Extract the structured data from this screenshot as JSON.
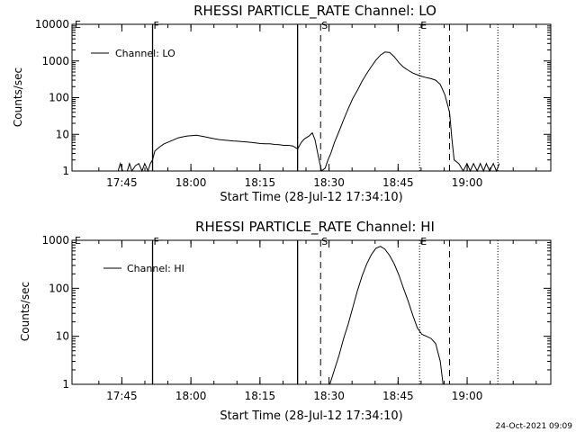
{
  "footer_timestamp": "24-Oct-2021 09:09",
  "chart_data": [
    {
      "type": "line",
      "title": "RHESSI PARTICLE_RATE Channel: LO",
      "xlabel": "Start Time (28-Jul-12 17:34:10)",
      "ylabel": "Counts/sec",
      "x_unit": "minutes after 17:34:10",
      "xlim": [
        0,
        104
      ],
      "ylim": [
        1,
        10000
      ],
      "yscale": "log",
      "xticks": [
        {
          "x": 10.83,
          "label": "17:45"
        },
        {
          "x": 25.83,
          "label": "18:00"
        },
        {
          "x": 40.83,
          "label": "18:15"
        },
        {
          "x": 55.83,
          "label": "18:30"
        },
        {
          "x": 70.83,
          "label": "18:45"
        },
        {
          "x": 85.83,
          "label": "19:00"
        }
      ],
      "yticks": [
        {
          "v": 1,
          "label": "1"
        },
        {
          "v": 10,
          "label": "10"
        },
        {
          "v": 100,
          "label": "100"
        },
        {
          "v": 1000,
          "label": "1000"
        },
        {
          "v": 10000,
          "label": "10000"
        }
      ],
      "legend": {
        "entry": "Channel: LO",
        "position": "top-left"
      },
      "markers": [
        {
          "x": 17.5,
          "style": "solid",
          "label": "F"
        },
        {
          "x": 49.0,
          "style": "solid",
          "label": ""
        },
        {
          "x": 54.0,
          "style": "dashed",
          "label": "S"
        },
        {
          "x": 75.5,
          "style": "dotted",
          "label": "E"
        },
        {
          "x": 82.0,
          "style": "dashed",
          "label": ""
        },
        {
          "x": 92.5,
          "style": "dotted",
          "label": ""
        }
      ],
      "corner_labels": [
        "E"
      ],
      "series": [
        {
          "name": "Channel: LO",
          "points": [
            [
              10.0,
              1.0
            ],
            [
              10.5,
              1.6
            ],
            [
              11.0,
              1.0
            ],
            [
              12.0,
              1.0
            ],
            [
              12.5,
              1.6
            ],
            [
              13.0,
              1.0
            ],
            [
              13.8,
              1.4
            ],
            [
              14.5,
              1.6
            ],
            [
              15.2,
              1.0
            ],
            [
              15.8,
              1.6
            ],
            [
              16.5,
              1.0
            ],
            [
              17.0,
              1.6
            ],
            [
              17.5,
              2.0
            ],
            [
              18.0,
              3.5
            ],
            [
              19.0,
              4.5
            ],
            [
              20.0,
              5.5
            ],
            [
              21.0,
              6.2
            ],
            [
              22.0,
              7.0
            ],
            [
              23.0,
              8.0
            ],
            [
              24.0,
              8.5
            ],
            [
              25.0,
              9.0
            ],
            [
              26.0,
              9.2
            ],
            [
              27.0,
              9.5
            ],
            [
              28.0,
              9.0
            ],
            [
              29.0,
              8.5
            ],
            [
              30.0,
              8.0
            ],
            [
              31.0,
              7.5
            ],
            [
              32.0,
              7.2
            ],
            [
              33.0,
              7.0
            ],
            [
              34.0,
              6.8
            ],
            [
              35.0,
              6.6
            ],
            [
              36.0,
              6.5
            ],
            [
              37.0,
              6.3
            ],
            [
              38.0,
              6.2
            ],
            [
              39.0,
              6.0
            ],
            [
              40.0,
              5.8
            ],
            [
              41.0,
              5.6
            ],
            [
              42.0,
              5.5
            ],
            [
              43.0,
              5.5
            ],
            [
              44.0,
              5.3
            ],
            [
              45.0,
              5.2
            ],
            [
              46.0,
              5.0
            ],
            [
              47.0,
              5.0
            ],
            [
              48.0,
              4.8
            ],
            [
              49.0,
              4.0
            ],
            [
              49.8,
              6.0
            ],
            [
              50.5,
              7.5
            ],
            [
              51.5,
              9.0
            ],
            [
              52.2,
              11.0
            ],
            [
              52.8,
              7.0
            ],
            [
              53.5,
              2.5
            ],
            [
              54.2,
              1.0
            ],
            [
              55.0,
              1.2
            ],
            [
              55.6,
              2.0
            ],
            [
              56.2,
              3.0
            ],
            [
              57.0,
              6.0
            ],
            [
              58.0,
              12.0
            ],
            [
              59.0,
              25.0
            ],
            [
              60.0,
              50.0
            ],
            [
              61.0,
              95.0
            ],
            [
              62.0,
              160.0
            ],
            [
              63.0,
              280.0
            ],
            [
              64.0,
              450.0
            ],
            [
              65.0,
              700.0
            ],
            [
              66.0,
              1050.0
            ],
            [
              67.0,
              1450.0
            ],
            [
              68.0,
              1750.0
            ],
            [
              69.0,
              1700.0
            ],
            [
              70.0,
              1300.0
            ],
            [
              71.0,
              900.0
            ],
            [
              72.0,
              680.0
            ],
            [
              73.0,
              560.0
            ],
            [
              74.0,
              470.0
            ],
            [
              75.0,
              420.0
            ],
            [
              76.0,
              380.0
            ],
            [
              77.0,
              350.0
            ],
            [
              78.0,
              330.0
            ],
            [
              79.0,
              300.0
            ],
            [
              80.0,
              230.0
            ],
            [
              81.0,
              120.0
            ],
            [
              82.0,
              40.0
            ],
            [
              82.5,
              8.0
            ],
            [
              83.0,
              2.0
            ],
            [
              84.0,
              1.6
            ],
            [
              85.0,
              1.0
            ],
            [
              85.8,
              1.6
            ],
            [
              86.5,
              1.0
            ],
            [
              87.2,
              1.6
            ],
            [
              88.0,
              1.0
            ],
            [
              88.7,
              1.6
            ],
            [
              89.4,
              1.0
            ],
            [
              90.0,
              1.6
            ],
            [
              90.7,
              1.0
            ],
            [
              91.5,
              1.6
            ],
            [
              92.2,
              1.0
            ],
            [
              92.8,
              1.6
            ]
          ]
        }
      ]
    },
    {
      "type": "line",
      "title": "RHESSI PARTICLE_RATE Channel: HI",
      "xlabel": "Start Time (28-Jul-12 17:34:10)",
      "ylabel": "Counts/sec",
      "x_unit": "minutes after 17:34:10",
      "xlim": [
        0,
        104
      ],
      "ylim": [
        1,
        1000
      ],
      "yscale": "log",
      "xticks": [
        {
          "x": 10.83,
          "label": "17:45"
        },
        {
          "x": 25.83,
          "label": "18:00"
        },
        {
          "x": 40.83,
          "label": "18:15"
        },
        {
          "x": 55.83,
          "label": "18:30"
        },
        {
          "x": 70.83,
          "label": "18:45"
        },
        {
          "x": 85.83,
          "label": "19:00"
        }
      ],
      "yticks": [
        {
          "v": 1,
          "label": "1"
        },
        {
          "v": 10,
          "label": "10"
        },
        {
          "v": 100,
          "label": "100"
        },
        {
          "v": 1000,
          "label": "1000"
        }
      ],
      "legend": {
        "entry": "Channel: HI",
        "position": "top-left"
      },
      "markers": [
        {
          "x": 17.5,
          "style": "solid",
          "label": "F"
        },
        {
          "x": 49.0,
          "style": "solid",
          "label": ""
        },
        {
          "x": 54.0,
          "style": "dashed",
          "label": "S"
        },
        {
          "x": 75.5,
          "style": "dotted",
          "label": "E"
        },
        {
          "x": 82.0,
          "style": "dashed",
          "label": ""
        },
        {
          "x": 92.5,
          "style": "dotted",
          "label": ""
        }
      ],
      "corner_labels": [
        "E"
      ],
      "series": [
        {
          "name": "Channel: HI",
          "points": [
            [
              56.0,
              1.0
            ],
            [
              57.0,
              2.0
            ],
            [
              58.0,
              4.0
            ],
            [
              59.0,
              9.0
            ],
            [
              60.0,
              18.0
            ],
            [
              61.0,
              40.0
            ],
            [
              62.0,
              90.0
            ],
            [
              63.0,
              180.0
            ],
            [
              64.0,
              320.0
            ],
            [
              65.0,
              500.0
            ],
            [
              66.0,
              680.0
            ],
            [
              67.0,
              750.0
            ],
            [
              68.0,
              650.0
            ],
            [
              69.0,
              480.0
            ],
            [
              70.0,
              320.0
            ],
            [
              71.0,
              190.0
            ],
            [
              72.0,
              100.0
            ],
            [
              73.0,
              55.0
            ],
            [
              74.0,
              28.0
            ],
            [
              75.0,
              15.0
            ],
            [
              76.0,
              11.0
            ],
            [
              77.0,
              10.0
            ],
            [
              78.0,
              9.0
            ],
            [
              79.0,
              7.0
            ],
            [
              80.0,
              3.0
            ],
            [
              80.6,
              1.0
            ]
          ]
        }
      ]
    }
  ]
}
